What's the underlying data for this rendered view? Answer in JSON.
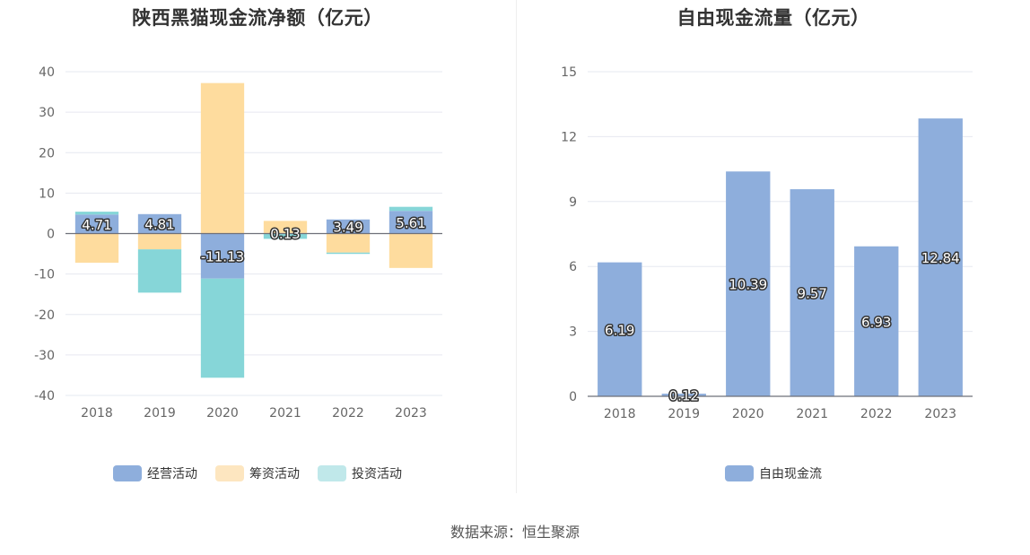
{
  "source_label": "数据来源：恒生聚源",
  "chart_data": [
    {
      "type": "bar",
      "stacked": true,
      "title": "陕西黑猫现金流净额（亿元）",
      "categories": [
        "2018",
        "2019",
        "2020",
        "2021",
        "2022",
        "2023"
      ],
      "ylim": [
        -40,
        40
      ],
      "yticks": [
        40,
        30,
        20,
        10,
        0,
        -10,
        -20,
        -30,
        -40
      ],
      "grid": true,
      "legend_position": "bottom",
      "series": [
        {
          "name": "经营活动",
          "color": "#8eaedc",
          "values": [
            4.71,
            4.81,
            -11.13,
            0.13,
            3.49,
            5.61
          ],
          "labels": [
            "4.71",
            "4.81",
            "-11.13",
            "0.13",
            "3.49",
            "5.61"
          ]
        },
        {
          "name": "筹资活动",
          "color": "#fedc9e",
          "values": [
            -7.2,
            -3.9,
            37.2,
            3.0,
            -4.7,
            -8.5
          ]
        },
        {
          "name": "投资活动",
          "color": "#86d6d8",
          "values": [
            0.7,
            -10.7,
            -24.5,
            -1.3,
            -0.3,
            1.0
          ]
        }
      ],
      "legend_colors": {
        "经营活动": "#8eaedc",
        "筹资活动": "#fde6c0",
        "投资活动": "#c0e8ea"
      }
    },
    {
      "type": "bar",
      "title": "自由现金流量（亿元）",
      "categories": [
        "2018",
        "2019",
        "2020",
        "2021",
        "2022",
        "2023"
      ],
      "ylim": [
        0,
        15
      ],
      "yticks": [
        15,
        12,
        9,
        6,
        3,
        0
      ],
      "grid": true,
      "legend_position": "bottom",
      "series": [
        {
          "name": "自由现金流",
          "color": "#8eaedc",
          "values": [
            6.19,
            0.12,
            10.39,
            9.57,
            6.93,
            12.84
          ],
          "labels": [
            "6.19",
            "0.12",
            "10.39",
            "9.57",
            "6.93",
            "12.84"
          ]
        }
      ]
    }
  ]
}
